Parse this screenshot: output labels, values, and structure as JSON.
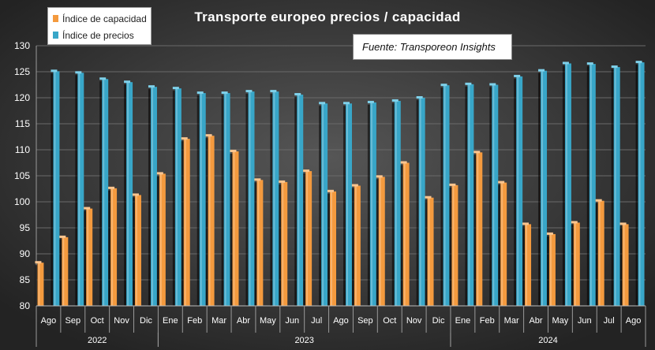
{
  "chart_data": {
    "type": "bar",
    "title": "Transporte europeo precios / capacidad",
    "source": "Fuente: Transporeon Insights",
    "categories": [
      "Ago",
      "Sep",
      "Oct",
      "Nov",
      "Dic",
      "Ene",
      "Feb",
      "Mar",
      "Abr",
      "May",
      "Jun",
      "Jul",
      "Ago",
      "Sep",
      "Oct",
      "Nov",
      "Dic",
      "Ene",
      "Feb",
      "Mar",
      "Abr",
      "May",
      "Jun",
      "Jul",
      "Ago"
    ],
    "year_groups": [
      {
        "label": "2022",
        "start": 0,
        "end": 4
      },
      {
        "label": "2023",
        "start": 5,
        "end": 16
      },
      {
        "label": "2024",
        "start": 17,
        "end": 24
      }
    ],
    "series": [
      {
        "name": "Índice de capacidad",
        "color": "#f49a3e",
        "values": [
          88.3,
          93.2,
          98.7,
          102.6,
          101.3,
          105.4,
          112.1,
          112.7,
          109.7,
          104.2,
          103.8,
          105.9,
          102.0,
          103.1,
          104.8,
          107.5,
          100.8,
          103.2,
          109.5,
          103.7,
          95.7,
          93.8,
          96.0,
          100.2,
          95.7
        ]
      },
      {
        "name": "Índice de precios",
        "color": "#38a6c8",
        "values": [
          125.1,
          124.8,
          123.6,
          123.0,
          122.1,
          121.8,
          120.9,
          120.9,
          121.2,
          121.2,
          120.6,
          118.9,
          118.9,
          119.1,
          119.4,
          120.0,
          122.4,
          122.6,
          122.5,
          124.1,
          125.2,
          126.6,
          126.5,
          125.9,
          126.8
        ]
      }
    ],
    "ylim": [
      80,
      130
    ],
    "yticks": [
      80,
      85,
      90,
      95,
      100,
      105,
      110,
      115,
      120,
      125,
      130
    ],
    "grid": true,
    "legend_position": "top-left",
    "xlabel": "",
    "ylabel": ""
  }
}
